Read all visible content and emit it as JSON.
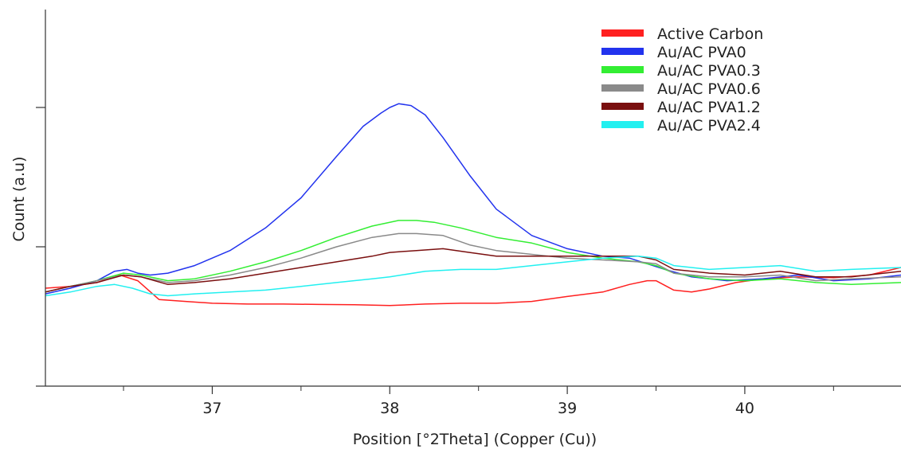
{
  "chart_data": {
    "type": "line",
    "title": "",
    "xlabel": "Position [°2Theta] (Copper (Cu))",
    "ylabel": "Count (a.u)",
    "xlim": [
      36.06,
      40.88
    ],
    "ylim": [
      0,
      100
    ],
    "x_ticks": [
      37,
      38,
      39,
      40
    ],
    "x_tick_labels": [
      "37",
      "38",
      "39",
      "40"
    ],
    "y_ticks": [
      37,
      74
    ],
    "y_tick_labels": [
      "",
      ""
    ],
    "grid": false,
    "legend_position": "top-right",
    "series": [
      {
        "name": "Active Carbon",
        "color": "#ff2020",
        "x": [
          36.06,
          36.2,
          36.35,
          36.48,
          36.58,
          36.7,
          36.85,
          37.0,
          37.2,
          37.4,
          37.6,
          37.8,
          38.0,
          38.2,
          38.4,
          38.6,
          38.8,
          39.0,
          39.2,
          39.35,
          39.45,
          39.5,
          39.6,
          39.7,
          39.8,
          39.95,
          40.1,
          40.3,
          40.5,
          40.7,
          40.88
        ],
        "y": [
          26,
          26.5,
          27.5,
          29.5,
          28,
          23,
          22.5,
          22,
          21.8,
          21.8,
          21.7,
          21.6,
          21.4,
          21.8,
          22,
          22,
          22.5,
          23.8,
          25,
          27,
          28,
          28,
          25.5,
          25,
          25.8,
          27.5,
          28.5,
          29,
          28.8,
          29.5,
          31.5
        ]
      },
      {
        "name": "Au/AC PVA0",
        "color": "#2233ee",
        "x": [
          36.06,
          36.2,
          36.35,
          36.45,
          36.52,
          36.58,
          36.65,
          36.75,
          36.9,
          37.1,
          37.3,
          37.5,
          37.7,
          37.85,
          37.95,
          38.0,
          38.05,
          38.12,
          38.2,
          38.3,
          38.45,
          38.6,
          38.8,
          39.0,
          39.2,
          39.35,
          39.45,
          39.55,
          39.7,
          39.9,
          40.1,
          40.3,
          40.5,
          40.7,
          40.88
        ],
        "y": [
          24.5,
          26,
          28,
          30.5,
          31,
          30,
          29.5,
          30,
          32,
          36,
          42,
          50,
          61,
          69,
          72.5,
          74,
          75,
          74.5,
          72,
          66,
          56,
          47,
          40,
          36.5,
          34.5,
          34,
          32.5,
          31,
          29,
          28,
          28.5,
          29.5,
          28,
          28.5,
          29.5
        ]
      },
      {
        "name": "Au/AC PVA0.3",
        "color": "#33ee33",
        "x": [
          36.06,
          36.2,
          36.35,
          36.5,
          36.6,
          36.75,
          36.9,
          37.1,
          37.3,
          37.5,
          37.7,
          37.9,
          38.05,
          38.15,
          38.25,
          38.4,
          38.6,
          38.8,
          39.0,
          39.2,
          39.4,
          39.5,
          39.6,
          39.8,
          40.0,
          40.2,
          40.4,
          40.6,
          40.88
        ],
        "y": [
          25,
          26.5,
          28,
          30,
          29.5,
          28,
          28.5,
          30.5,
          33,
          36,
          39.5,
          42.5,
          44,
          44,
          43.5,
          42,
          39.5,
          38,
          35.5,
          34,
          33,
          32,
          30,
          28.5,
          28,
          28.5,
          27.5,
          27,
          27.5
        ]
      },
      {
        "name": "Au/AC PVA0.6",
        "color": "#8a8a8a",
        "x": [
          36.06,
          36.2,
          36.35,
          36.5,
          36.6,
          36.75,
          36.9,
          37.1,
          37.3,
          37.5,
          37.7,
          37.9,
          38.05,
          38.15,
          38.3,
          38.45,
          38.6,
          38.8,
          39.0,
          39.2,
          39.4,
          39.5,
          39.6,
          39.8,
          40.0,
          40.2,
          40.4,
          40.6,
          40.88
        ],
        "y": [
          25,
          26.5,
          28,
          29.5,
          29,
          27.5,
          28,
          29.5,
          31.5,
          34,
          37,
          39.5,
          40.5,
          40.5,
          40,
          37.5,
          36,
          35,
          34,
          33.5,
          33,
          32.5,
          30,
          29,
          29,
          29.5,
          28,
          28.5,
          29
        ]
      },
      {
        "name": "Au/AC PVA1.2",
        "color": "#7a0f0f",
        "x": [
          36.06,
          36.2,
          36.35,
          36.5,
          36.6,
          36.75,
          36.9,
          37.1,
          37.3,
          37.5,
          37.7,
          37.9,
          38.0,
          38.15,
          38.3,
          38.45,
          38.6,
          38.8,
          39.0,
          39.2,
          39.4,
          39.5,
          39.6,
          39.8,
          40.0,
          40.2,
          40.4,
          40.6,
          40.88
        ],
        "y": [
          25,
          26.5,
          27.5,
          29.5,
          29,
          27,
          27.5,
          28.5,
          30,
          31.5,
          33,
          34.5,
          35.5,
          36,
          36.5,
          35.5,
          34.5,
          34.5,
          34.5,
          34.5,
          34.5,
          33.5,
          31,
          30,
          29.5,
          30.5,
          29,
          29,
          30.5
        ]
      },
      {
        "name": "Au/AC PVA2.4",
        "color": "#22f0f0",
        "x": [
          36.06,
          36.2,
          36.35,
          36.45,
          36.55,
          36.65,
          36.75,
          36.9,
          37.1,
          37.3,
          37.5,
          37.7,
          37.9,
          38.0,
          38.2,
          38.4,
          38.6,
          38.8,
          39.0,
          39.2,
          39.4,
          39.5,
          39.6,
          39.8,
          40.0,
          40.2,
          40.4,
          40.6,
          40.88
        ],
        "y": [
          24,
          25,
          26.5,
          27,
          26,
          24.5,
          24,
          24.5,
          25,
          25.5,
          26.5,
          27.5,
          28.5,
          29,
          30.5,
          31,
          31,
          32,
          33,
          34,
          34.5,
          34,
          32,
          31,
          31.5,
          32,
          30.5,
          31,
          31.5
        ]
      }
    ]
  }
}
